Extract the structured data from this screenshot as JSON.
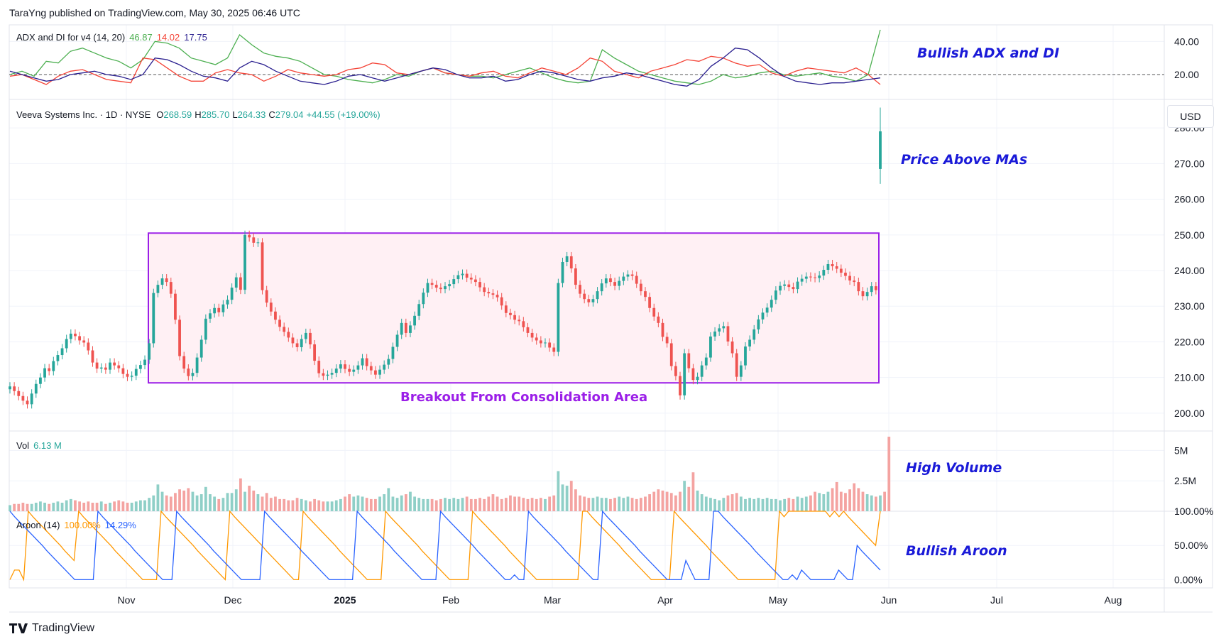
{
  "header": {
    "published": "TaraYng published on TradingView.com, May 30, 2025 06:46 UTC"
  },
  "footer": {
    "brand": "TradingView"
  },
  "price_scale": {
    "currency_button": "USD"
  },
  "panels": {
    "adx": {
      "name": "ADX and DI for v4 (14, 20)",
      "adx_value": "46.87",
      "di_minus_value": "14.02",
      "di_plus_value": "17.75"
    },
    "price": {
      "symbol": "Veeva Systems Inc. · 1D · NYSE",
      "open_label": "O",
      "open": "268.59",
      "high_label": "H",
      "high": "285.70",
      "low_label": "L",
      "low": "264.33",
      "close_label": "C",
      "close": "279.04",
      "change": "+44.55 (+19.00%)"
    },
    "volume": {
      "name": "Vol",
      "value": "6.13 M"
    },
    "aroon": {
      "name": "Aroon (14)",
      "up_value": "100.00%",
      "down_value": "14.29%"
    }
  },
  "annotations": {
    "adx": "Bullish ADX and DI",
    "price": "Price Above MAs",
    "volume": "High Volume",
    "aroon": "Bullish Aroon",
    "consolidation": "Breakout From Consolidation Area"
  },
  "colors": {
    "up": "#26a69a",
    "down": "#ef5350",
    "vol_up": "#8fcfc7",
    "vol_down": "#f4a3a1",
    "adx": "#4caf50",
    "di_minus": "#f44336",
    "di_plus": "#2a1f8f",
    "aroon_up": "#ff9800",
    "aroon_down": "#2962ff",
    "box_border": "#9b1fe8",
    "box_fill": "#fff0f4",
    "annotation": "#1a1ad8"
  },
  "chart_data": [
    {
      "type": "line",
      "title": "ADX and DI for v4 (14, 20)",
      "y_ticks": [
        "40.00",
        "20.00"
      ],
      "ylim": [
        5,
        50
      ],
      "threshold": 20,
      "series": [
        {
          "name": "ADX",
          "values": [
            20,
            22,
            19,
            28,
            27,
            34,
            36,
            33,
            30,
            28,
            24,
            29,
            40,
            39,
            36,
            30,
            28,
            26,
            30,
            44,
            38,
            33,
            31,
            30,
            28,
            24,
            20,
            19,
            17,
            16,
            15,
            17,
            20,
            19,
            22,
            24,
            21,
            20,
            19,
            19,
            18,
            20,
            22,
            24,
            21,
            18,
            16,
            15,
            16,
            35,
            30,
            26,
            22,
            20,
            18,
            16,
            15,
            14,
            16,
            20,
            18,
            19,
            21,
            22,
            20,
            19,
            20,
            21,
            19,
            18,
            16,
            20,
            47
          ]
        },
        {
          "name": "-DI",
          "values": [
            19,
            20,
            17,
            14,
            19,
            22,
            23,
            20,
            17,
            16,
            15,
            30,
            29,
            24,
            19,
            16,
            16,
            21,
            23,
            21,
            20,
            16,
            19,
            23,
            21,
            20,
            19,
            20,
            23,
            24,
            27,
            26,
            21,
            20,
            22,
            24,
            21,
            20,
            19,
            21,
            22,
            19,
            18,
            21,
            24,
            22,
            20,
            24,
            30,
            28,
            22,
            20,
            18,
            22,
            24,
            26,
            29,
            28,
            31,
            30,
            27,
            25,
            26,
            21,
            19,
            22,
            24,
            23,
            22,
            21,
            24,
            20,
            14
          ]
        },
        {
          "name": "+DI",
          "values": [
            22,
            20,
            18,
            16,
            17,
            20,
            21,
            22,
            20,
            19,
            17,
            20,
            30,
            29,
            26,
            22,
            19,
            18,
            16,
            24,
            28,
            26,
            22,
            19,
            16,
            15,
            14,
            16,
            19,
            20,
            18,
            16,
            18,
            20,
            22,
            24,
            23,
            20,
            18,
            18,
            19,
            16,
            17,
            20,
            22,
            21,
            19,
            17,
            16,
            18,
            19,
            21,
            20,
            18,
            16,
            14,
            13,
            17,
            25,
            30,
            36,
            35,
            30,
            24,
            19,
            16,
            15,
            14,
            15,
            15,
            16,
            17,
            18
          ]
        }
      ]
    },
    {
      "type": "candlestick",
      "title": "Veeva Systems Inc. · 1D · NYSE",
      "y_ticks": [
        "280.00",
        "270.00",
        "260.00",
        "250.00",
        "240.00",
        "230.00",
        "220.00",
        "210.00",
        "200.00"
      ],
      "ylim": [
        195,
        288
      ],
      "consolidation_zone": [
        208.5,
        250.5
      ],
      "x_ticks": [
        "Nov",
        "Dec",
        "2025",
        "Feb",
        "Mar",
        "Apr",
        "May",
        "Jun",
        "Jul",
        "Aug"
      ],
      "closes": [
        207.5,
        206.2,
        204.8,
        203.5,
        202.5,
        205.5,
        208.2,
        210.0,
        212.6,
        211.8,
        214.6,
        216.3,
        218.2,
        220.8,
        222.3,
        221.6,
        220.4,
        219.8,
        217.6,
        214.2,
        212.5,
        212.8,
        212.2,
        214.2,
        213.4,
        212.6,
        211.0,
        210.2,
        210.5,
        212.4,
        213.5,
        215.0,
        219.6,
        233.7,
        236.0,
        237.8,
        236.8,
        233.5,
        226.2,
        216.0,
        212.5,
        210.4,
        211.3,
        215.6,
        220.6,
        226.5,
        228.0,
        229.5,
        228.3,
        230.5,
        231.8,
        235.2,
        238.1,
        234.6,
        250.0,
        249.3,
        247.8,
        247.9,
        234.5,
        231.0,
        228.5,
        226.2,
        224.2,
        222.8,
        221.2,
        219.6,
        218.5,
        220.8,
        222.5,
        219.3,
        214.7,
        211.2,
        210.5,
        210.8,
        211.3,
        212.5,
        213.7,
        212.4,
        211.6,
        212.2,
        213.4,
        215.4,
        213.2,
        212.0,
        210.8,
        212.2,
        213.6,
        215.2,
        218.6,
        222.0,
        225.3,
        222.5,
        224.6,
        227.3,
        230.6,
        233.8,
        236.5,
        236.0,
        235.2,
        234.8,
        235.6,
        236.2,
        237.6,
        238.7,
        239.1,
        238.0,
        237.5,
        236.8,
        235.3,
        234.0,
        233.6,
        233.2,
        232.5,
        230.2,
        228.1,
        227.5,
        226.2,
        225.8,
        224.1,
        222.5,
        221.2,
        220.4,
        219.6,
        219.8,
        218.4,
        217.2,
        236.5,
        242.4,
        244.0,
        240.6,
        236.0,
        233.5,
        232.0,
        231.1,
        232.0,
        234.2,
        236.4,
        237.8,
        236.8,
        235.7,
        237.1,
        238.3,
        238.9,
        238.5,
        236.3,
        234.2,
        232.6,
        229.5,
        227.1,
        225.3,
        221.4,
        219.6,
        213.2,
        210.4,
        205.0,
        216.8,
        212.6,
        209.3,
        210.2,
        213.4,
        215.6,
        221.5,
        222.9,
        223.8,
        224.4,
        220.1,
        216.8,
        210.2,
        213.4,
        218.7,
        220.6,
        223.5,
        226.3,
        228.2,
        229.6,
        231.8,
        234.4,
        235.7,
        236.1,
        235.4,
        234.8,
        236.9,
        237.7,
        238.3,
        238.1,
        237.9,
        238.6,
        240.2,
        241.8,
        241.2,
        240.5,
        239.4,
        238.5,
        237.2,
        236.8,
        234.2,
        232.8,
        234.0,
        235.6,
        234.5,
        279.04
      ]
    },
    {
      "type": "bar",
      "title": "Vol",
      "y_ticks": [
        "5M",
        "2.5M"
      ],
      "ylim": [
        0,
        6.6
      ],
      "unit": "M",
      "values": [
        0.5,
        0.6,
        0.6,
        0.7,
        0.6,
        0.6,
        0.7,
        0.8,
        0.7,
        0.6,
        0.7,
        0.8,
        0.7,
        0.9,
        1.0,
        0.9,
        0.8,
        0.7,
        0.8,
        0.7,
        0.7,
        0.8,
        0.6,
        0.7,
        0.8,
        0.9,
        0.8,
        0.7,
        0.7,
        0.8,
        0.9,
        0.9,
        1.1,
        1.3,
        2.2,
        1.6,
        1.3,
        1.2,
        1.5,
        1.8,
        1.7,
        1.9,
        1.6,
        1.3,
        1.4,
        2.0,
        1.4,
        1.2,
        1.0,
        1.1,
        1.5,
        1.5,
        1.8,
        2.7,
        1.6,
        2.1,
        1.7,
        1.4,
        1.2,
        1.5,
        1.1,
        1.2,
        1.0,
        1.0,
        0.9,
        0.9,
        1.1,
        1.0,
        0.9,
        0.8,
        1.0,
        0.9,
        0.8,
        0.8,
        0.8,
        0.9,
        1.0,
        1.2,
        1.4,
        1.2,
        1.3,
        1.2,
        1.1,
        1.0,
        1.0,
        1.2,
        1.4,
        1.9,
        1.2,
        1.1,
        1.3,
        1.4,
        1.6,
        1.2,
        1.1,
        1.0,
        1.0,
        1.0,
        0.9,
        1.0,
        1.1,
        1.0,
        1.1,
        1.0,
        1.1,
        1.2,
        1.0,
        1.0,
        1.1,
        1.0,
        1.2,
        1.4,
        1.2,
        1.0,
        1.1,
        1.3,
        1.2,
        1.2,
        1.1,
        1.0,
        1.1,
        1.0,
        1.1,
        1.0,
        1.2,
        1.3,
        3.3,
        2.2,
        2.1,
        2.5,
        1.8,
        1.3,
        1.2,
        1.1,
        1.1,
        1.2,
        1.1,
        1.1,
        1.0,
        1.1,
        1.2,
        1.1,
        1.2,
        1.1,
        1.0,
        1.1,
        1.2,
        1.4,
        1.6,
        1.8,
        1.7,
        1.6,
        1.5,
        1.3,
        1.6,
        2.5,
        2.0,
        3.2,
        1.7,
        1.4,
        1.2,
        1.1,
        1.0,
        0.9,
        1.1,
        1.3,
        1.4,
        1.5,
        1.2,
        1.0,
        1.1,
        1.0,
        1.1,
        1.0,
        1.1,
        1.0,
        1.0,
        0.9,
        1.0,
        1.1,
        1.0,
        1.2,
        1.1,
        1.2,
        1.3,
        1.6,
        1.5,
        1.4,
        1.6,
        1.9,
        2.4,
        1.6,
        1.5,
        1.8,
        2.3,
        1.9,
        1.6,
        1.4,
        1.3,
        1.2,
        1.3,
        1.6,
        6.13
      ]
    },
    {
      "type": "line",
      "title": "Aroon (14)",
      "y_ticks": [
        "100.00%",
        "50.00%",
        "0.00%"
      ],
      "ylim": [
        -12,
        100
      ],
      "series": [
        {
          "name": "Aroon Up",
          "values": [
            0,
            14,
            14,
            0,
            100,
            92,
            85,
            78,
            71,
            64,
            57,
            50,
            42,
            35,
            28,
            100,
            92,
            85,
            78,
            71,
            64,
            57,
            50,
            42,
            35,
            28,
            21,
            14,
            7,
            0,
            0,
            0,
            0,
            100,
            92,
            85,
            78,
            71,
            64,
            57,
            50,
            42,
            35,
            28,
            21,
            14,
            7,
            0,
            100,
            92,
            85,
            78,
            71,
            64,
            57,
            50,
            42,
            35,
            28,
            21,
            14,
            7,
            0,
            0,
            100,
            92,
            85,
            78,
            71,
            64,
            57,
            50,
            42,
            35,
            28,
            21,
            14,
            7,
            0,
            0,
            0,
            0,
            100,
            92,
            85,
            78,
            71,
            64,
            57,
            50,
            42,
            35,
            28,
            21,
            14,
            7,
            0,
            0,
            0,
            0,
            0,
            100,
            92,
            85,
            78,
            71,
            64,
            57,
            50,
            42,
            35,
            28,
            21,
            14,
            7,
            0,
            0,
            0,
            0,
            0,
            0,
            0,
            0,
            0,
            0,
            100,
            100,
            92,
            85,
            78,
            71,
            64,
            57,
            50,
            42,
            35,
            28,
            21,
            14,
            7,
            0,
            0,
            0,
            0,
            0,
            100,
            92,
            85,
            78,
            71,
            64,
            57,
            50,
            42,
            35,
            28,
            21,
            14,
            7,
            0,
            0,
            0,
            0,
            0,
            0,
            0,
            0,
            0,
            100,
            92,
            100,
            100,
            100,
            100,
            100,
            100,
            100,
            100,
            100,
            92,
            100,
            92,
            100,
            92,
            85,
            78,
            71,
            64,
            57,
            50,
            100
          ]
        },
        {
          "name": "Aroon Down",
          "values": [
            100,
            92,
            85,
            78,
            71,
            64,
            57,
            50,
            42,
            35,
            28,
            21,
            14,
            7,
            0,
            0,
            0,
            0,
            0,
            100,
            92,
            85,
            78,
            71,
            64,
            57,
            50,
            42,
            35,
            28,
            21,
            14,
            7,
            0,
            0,
            0,
            100,
            92,
            85,
            78,
            71,
            64,
            57,
            50,
            42,
            35,
            28,
            21,
            14,
            7,
            0,
            0,
            0,
            0,
            0,
            100,
            92,
            85,
            78,
            71,
            64,
            57,
            50,
            42,
            35,
            28,
            21,
            14,
            7,
            0,
            0,
            0,
            0,
            0,
            0,
            100,
            92,
            85,
            78,
            71,
            64,
            57,
            50,
            42,
            35,
            28,
            21,
            14,
            7,
            0,
            0,
            0,
            0,
            100,
            92,
            85,
            78,
            71,
            64,
            57,
            50,
            42,
            35,
            28,
            21,
            14,
            7,
            0,
            0,
            7,
            0,
            0,
            100,
            92,
            85,
            78,
            71,
            64,
            57,
            50,
            42,
            35,
            28,
            21,
            14,
            7,
            0,
            0,
            100,
            92,
            85,
            78,
            71,
            64,
            57,
            50,
            42,
            35,
            28,
            21,
            14,
            7,
            0,
            0,
            0,
            0,
            28,
            14,
            0,
            0,
            0,
            0,
            100,
            100,
            92,
            85,
            78,
            71,
            64,
            57,
            50,
            42,
            35,
            28,
            21,
            14,
            7,
            0,
            0,
            7,
            0,
            14,
            7,
            0,
            0,
            0,
            0,
            0,
            0,
            14,
            7,
            0,
            0,
            50,
            42,
            35,
            28,
            21,
            14
          ]
        }
      ]
    }
  ]
}
